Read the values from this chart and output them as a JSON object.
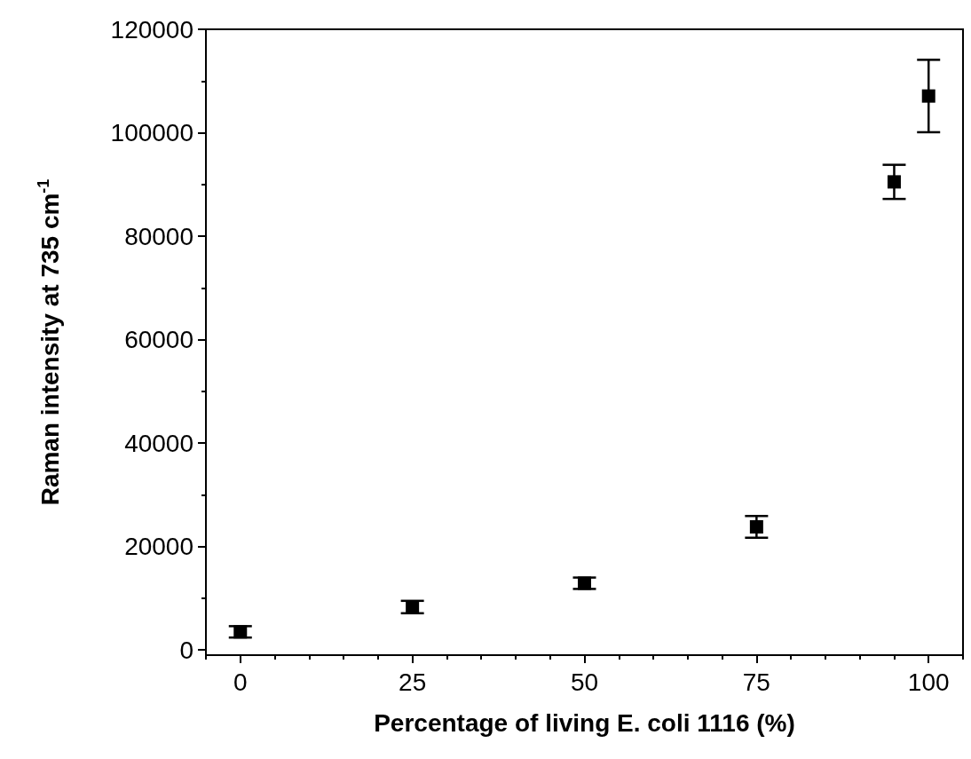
{
  "chart_data": {
    "type": "scatter",
    "xlabel": "Percentage of living E. coli 1116 (%)",
    "ylabel": "Raman intensity at 735 cm$^{-1}$",
    "x": [
      0,
      25,
      50,
      75,
      95,
      100
    ],
    "series": [
      {
        "color": "#000000",
        "values": [
          3500,
          8300,
          12900,
          23800,
          90500,
          107100
        ],
        "errors": [
          1100,
          1200,
          1100,
          2100,
          3300,
          7000
        ]
      }
    ],
    "marker": "square",
    "xlim": [
      -5,
      105
    ],
    "ylim": [
      -1000,
      120000
    ],
    "xticks": [
      0,
      25,
      50,
      75,
      100
    ],
    "yticks": [
      0,
      20000,
      40000,
      60000,
      80000,
      100000,
      120000
    ],
    "grid": false
  }
}
